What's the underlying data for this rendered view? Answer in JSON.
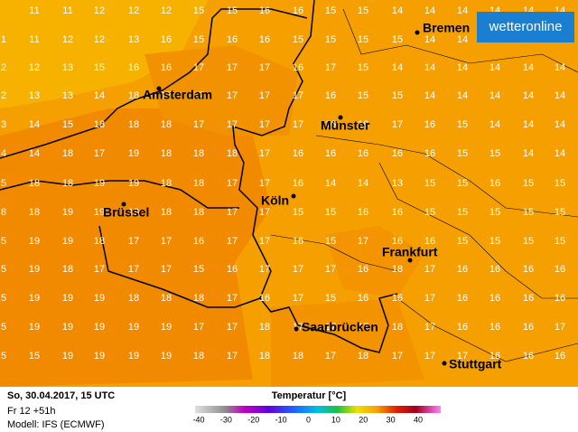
{
  "header": {
    "logo": "wetteronline"
  },
  "map": {
    "cities": [
      "Bremen",
      "Amsterdam",
      "Münster",
      "Köln",
      "Brüssel",
      "Frankfurt",
      "Saarbrücken",
      "Stuttgart"
    ],
    "grid": {
      "rows": [
        [
          "",
          "11",
          "11",
          "12",
          "12",
          "12",
          "15",
          "15",
          "16",
          "16",
          "15",
          "15",
          "14",
          "14",
          "14",
          "14",
          "14",
          "14"
        ],
        [
          "1",
          "11",
          "12",
          "12",
          "13",
          "16",
          "15",
          "16",
          "16",
          "15",
          "15",
          "15",
          "15",
          "14",
          "14",
          "14",
          "14",
          "14"
        ],
        [
          "2",
          "12",
          "13",
          "15",
          "16",
          "16",
          "17",
          "17",
          "17",
          "16",
          "17",
          "15",
          "14",
          "14",
          "14",
          "14",
          "14",
          "14"
        ],
        [
          "2",
          "13",
          "13",
          "14",
          "18",
          "17",
          "17",
          "17",
          "17",
          "17",
          "16",
          "15",
          "15",
          "14",
          "14",
          "14",
          "14",
          "14"
        ],
        [
          "3",
          "14",
          "15",
          "18",
          "18",
          "18",
          "17",
          "17",
          "17",
          "17",
          "16",
          "16",
          "17",
          "16",
          "15",
          "14",
          "14",
          "14"
        ],
        [
          "4",
          "14",
          "18",
          "17",
          "19",
          "18",
          "18",
          "18",
          "17",
          "16",
          "16",
          "16",
          "16",
          "16",
          "15",
          "15",
          "14",
          "14"
        ],
        [
          "5",
          "18",
          "18",
          "19",
          "19",
          "18",
          "18",
          "17",
          "17",
          "16",
          "14",
          "14",
          "13",
          "15",
          "15",
          "16",
          "15",
          "15"
        ],
        [
          "8",
          "18",
          "19",
          "19",
          "19",
          "18",
          "18",
          "17",
          "17",
          "15",
          "15",
          "16",
          "16",
          "15",
          "15",
          "15",
          "15",
          "15"
        ],
        [
          "5",
          "19",
          "19",
          "18",
          "17",
          "17",
          "16",
          "17",
          "17",
          "16",
          "15",
          "17",
          "16",
          "16",
          "15",
          "15",
          "15",
          "15"
        ],
        [
          "5",
          "19",
          "18",
          "17",
          "17",
          "17",
          "15",
          "16",
          "17",
          "17",
          "17",
          "16",
          "18",
          "17",
          "16",
          "16",
          "16",
          "16"
        ],
        [
          "5",
          "19",
          "19",
          "19",
          "18",
          "18",
          "18",
          "17",
          "16",
          "17",
          "15",
          "16",
          "16",
          "17",
          "16",
          "16",
          "16",
          "16"
        ],
        [
          "5",
          "19",
          "19",
          "19",
          "19",
          "19",
          "17",
          "17",
          "18",
          "17",
          "17",
          "17",
          "18",
          "17",
          "16",
          "16",
          "16",
          "17"
        ],
        [
          "5",
          "15",
          "19",
          "19",
          "19",
          "19",
          "18",
          "17",
          "18",
          "18",
          "17",
          "18",
          "17",
          "17",
          "17",
          "16",
          "16",
          "16"
        ]
      ]
    }
  },
  "footer": {
    "date": "So, 30.04.2017, 15 UTC",
    "run": "Fr 12 +51h",
    "model": "Modell: IFS (ECMWF)",
    "legend_title": "Temperatur [°C]",
    "legend_ticks": [
      -40,
      -30,
      -20,
      -10,
      0,
      10,
      20,
      30,
      40
    ]
  }
}
